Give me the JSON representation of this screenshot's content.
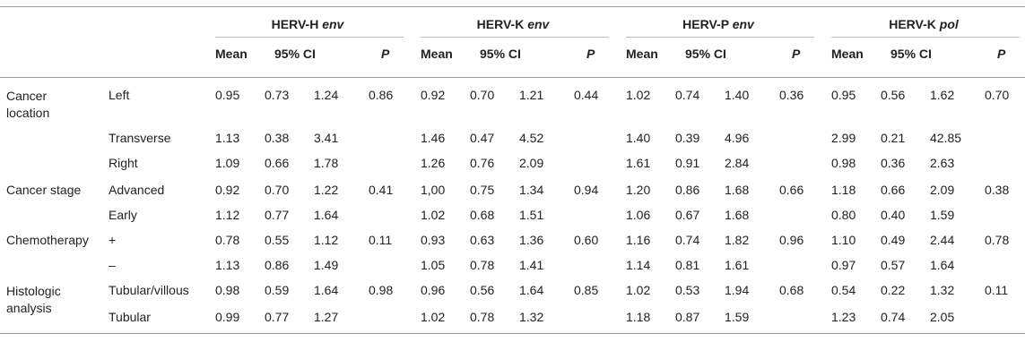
{
  "groups": [
    {
      "name": "HERV-H",
      "gene": "env"
    },
    {
      "name": "HERV-K",
      "gene": "env"
    },
    {
      "name": "HERV-P",
      "gene": "env"
    },
    {
      "name": "HERV-K",
      "gene": "pol"
    }
  ],
  "subheaders": {
    "mean": "Mean",
    "ci": "95% CI",
    "p": "P"
  },
  "rows": [
    {
      "category": "Cancer location",
      "label": "Left",
      "values": [
        [
          "0.95",
          "0.73",
          "1.24",
          "0.86"
        ],
        [
          "0.92",
          "0.70",
          "1.21",
          "0.44"
        ],
        [
          "1.02",
          "0.74",
          "1.40",
          "0.36"
        ],
        [
          "0.95",
          "0.56",
          "1.62",
          "0.70"
        ]
      ]
    },
    {
      "category": "",
      "label": "Transverse",
      "values": [
        [
          "1.13",
          "0.38",
          "3.41",
          ""
        ],
        [
          "1.46",
          "0.47",
          "4.52",
          ""
        ],
        [
          "1.40",
          "0.39",
          "4.96",
          ""
        ],
        [
          "2.99",
          "0.21",
          "42.85",
          ""
        ]
      ]
    },
    {
      "category": "",
      "label": "Right",
      "values": [
        [
          "1.09",
          "0.66",
          "1.78",
          ""
        ],
        [
          "1.26",
          "0.76",
          "2.09",
          ""
        ],
        [
          "1.61",
          "0.91",
          "2.84",
          ""
        ],
        [
          "0.98",
          "0.36",
          "2.63",
          ""
        ]
      ]
    },
    {
      "category": "Cancer stage",
      "label": "Advanced",
      "values": [
        [
          "0.92",
          "0.70",
          "1.22",
          "0.41"
        ],
        [
          "1,00",
          "0.75",
          "1.34",
          "0.94"
        ],
        [
          "1.20",
          "0.86",
          "1.68",
          "0.66"
        ],
        [
          "1.18",
          "0.66",
          "2.09",
          "0.38"
        ]
      ]
    },
    {
      "category": "",
      "label": "Early",
      "values": [
        [
          "1.12",
          "0.77",
          "1.64",
          ""
        ],
        [
          "1.02",
          "0.68",
          "1.51",
          ""
        ],
        [
          "1.06",
          "0.67",
          "1.68",
          ""
        ],
        [
          "0.80",
          "0.40",
          "1.59",
          ""
        ]
      ]
    },
    {
      "category": "Chemotherapy",
      "label": "+",
      "values": [
        [
          "0.78",
          "0.55",
          "1.12",
          "0.11"
        ],
        [
          "0.93",
          "0.63",
          "1.36",
          "0.60"
        ],
        [
          "1.16",
          "0.74",
          "1.82",
          "0.96"
        ],
        [
          "1.10",
          "0.49",
          "2.44",
          "0.78"
        ]
      ]
    },
    {
      "category": "",
      "label": "–",
      "values": [
        [
          "1.13",
          "0.86",
          "1.49",
          ""
        ],
        [
          "1.05",
          "0.78",
          "1.41",
          ""
        ],
        [
          "1.14",
          "0.81",
          "1.61",
          ""
        ],
        [
          "0.97",
          "0.57",
          "1.64",
          ""
        ]
      ]
    },
    {
      "category": "Histologic analysis",
      "label": "Tubular/villous",
      "values": [
        [
          "0.98",
          "0.59",
          "1.64",
          "0.98"
        ],
        [
          "0.96",
          "0.56",
          "1.64",
          "0.85"
        ],
        [
          "1.02",
          "0.53",
          "1.94",
          "0.68"
        ],
        [
          "0.54",
          "0.22",
          "1.32",
          "0.11"
        ]
      ]
    },
    {
      "category": "",
      "label": "Tubular",
      "values": [
        [
          "0.99",
          "0.77",
          "1.27",
          ""
        ],
        [
          "1.02",
          "0.78",
          "1.32",
          ""
        ],
        [
          "1.18",
          "0.87",
          "1.59",
          ""
        ],
        [
          "1.23",
          "0.74",
          "2.05",
          ""
        ]
      ]
    }
  ]
}
